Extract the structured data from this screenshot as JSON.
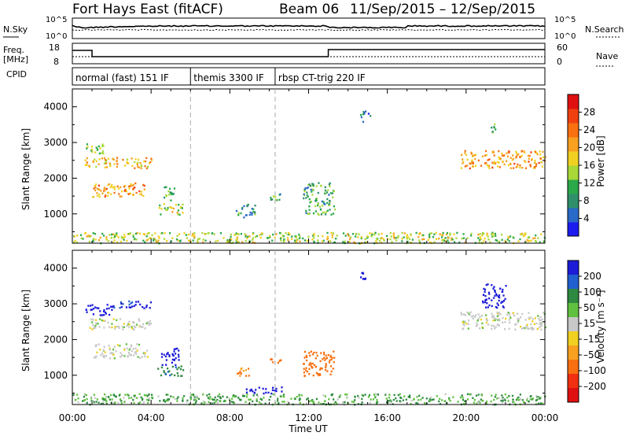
{
  "header": {
    "station": "Fort Hays East (fitACF)",
    "beam": "Beam 06",
    "dates": "11/Sep/2015 – 12/Sep/2015"
  },
  "noise_panel": {
    "left_label": "N.Sky",
    "right_label": "N.Search",
    "ticks_left": [
      "10^5",
      "10^0"
    ],
    "ticks_right": [
      "10^5",
      "10^0"
    ]
  },
  "freq_panel": {
    "left_label_1": "Freq.",
    "left_label_2": "[MHz]",
    "right_label": "Nave",
    "ticks_left": [
      "18",
      "8"
    ],
    "ticks_right": [
      "60",
      "0"
    ]
  },
  "cpid_panel": {
    "label": "CPID",
    "segments": [
      {
        "label": "normal (fast) 151 IF",
        "start_hour": 0.0
      },
      {
        "label": "themis 3300 IF",
        "start_hour": 6.0
      },
      {
        "label": "rbsp CT-trig 220 IF",
        "start_hour": 10.3
      }
    ]
  },
  "x_axis": {
    "label": "Time UT",
    "ticks": [
      "00:00",
      "04:00",
      "08:00",
      "12:00",
      "16:00",
      "20:00",
      "00:00"
    ]
  },
  "power_panel": {
    "ylabel": "Slant Range [km]",
    "yticks": [
      "1000",
      "2000",
      "3000",
      "4000"
    ],
    "colorbar_label": "Power [dB]",
    "colorbar_ticks": [
      "4",
      "8",
      "12",
      "16",
      "20",
      "24",
      "28"
    ]
  },
  "velocity_panel": {
    "ylabel": "Slant Range [km]",
    "yticks": [
      "1000",
      "2000",
      "3000",
      "4000"
    ],
    "colorbar_label": "Velocity [m s⁻¹]",
    "colorbar_ticks": [
      "200",
      "100",
      "50",
      "15",
      "–15",
      "–50",
      "–100",
      "–200"
    ]
  },
  "colors": {
    "power_scale": [
      "#1c1cf0",
      "#2a6ac8",
      "#2f8f6a",
      "#2aa84a",
      "#a8d838",
      "#f0d020",
      "#f8a020",
      "#f87010",
      "#f04010",
      "#e01010"
    ],
    "velocity_scale": [
      "#1c1cd8",
      "#2060d0",
      "#2e8a40",
      "#60c040",
      "#c8c8c8",
      "#f0d020",
      "#f8a020",
      "#f87010",
      "#f03010",
      "#e01010"
    ]
  },
  "chart_data": [
    {
      "type": "heatmap",
      "title": "Power [dB]",
      "xlabel": "Time UT",
      "ylabel": "Slant Range [km]",
      "xlim": [
        0,
        24
      ],
      "ylim": [
        180,
        4500
      ],
      "clim": [
        0,
        30
      ],
      "patches": [
        {
          "t0": 0.6,
          "t1": 4.0,
          "r0": 2300,
          "r1": 2600,
          "value": 18
        },
        {
          "t0": 0.6,
          "t1": 1.6,
          "r0": 2700,
          "r1": 3000,
          "value": 12
        },
        {
          "t0": 1.0,
          "t1": 3.8,
          "r0": 1500,
          "r1": 1900,
          "value": 20
        },
        {
          "t0": 4.3,
          "t1": 5.6,
          "r0": 1000,
          "r1": 1300,
          "value": 14
        },
        {
          "t0": 4.6,
          "t1": 5.2,
          "r0": 1400,
          "r1": 1800,
          "value": 10
        },
        {
          "t0": 8.3,
          "t1": 9.3,
          "r0": 900,
          "r1": 1300,
          "value": 8
        },
        {
          "t0": 10.0,
          "t1": 10.6,
          "r0": 1300,
          "r1": 1600,
          "value": 10
        },
        {
          "t0": 11.7,
          "t1": 13.3,
          "r0": 1000,
          "r1": 1900,
          "value": 10
        },
        {
          "t0": 14.6,
          "t1": 15.1,
          "r0": 3600,
          "r1": 3900,
          "value": 6
        },
        {
          "t0": 19.7,
          "t1": 24.0,
          "r0": 2300,
          "r1": 2800,
          "value": 20
        },
        {
          "t0": 21.1,
          "t1": 21.5,
          "r0": 3300,
          "r1": 3600,
          "value": 10
        },
        {
          "t0": 0.0,
          "t1": 24.0,
          "r0": 200,
          "r1": 500,
          "value": 14
        }
      ]
    },
    {
      "type": "heatmap",
      "title": "Velocity [m s⁻¹]",
      "xlabel": "Time UT",
      "ylabel": "Slant Range [km]",
      "xlim": [
        0,
        24
      ],
      "ylim": [
        180,
        4500
      ],
      "clim": [
        -200,
        200
      ],
      "patches": [
        {
          "t0": 0.6,
          "t1": 4.0,
          "r0": 2300,
          "r1": 2600,
          "value": 0
        },
        {
          "t0": 0.6,
          "t1": 2.0,
          "r0": 2700,
          "r1": 3000,
          "value": 200
        },
        {
          "t0": 2.0,
          "t1": 4.0,
          "r0": 2900,
          "r1": 3100,
          "value": 150
        },
        {
          "t0": 1.0,
          "t1": 3.8,
          "r0": 1500,
          "r1": 1900,
          "value": 0
        },
        {
          "t0": 4.5,
          "t1": 5.4,
          "r0": 1300,
          "r1": 1800,
          "value": 200
        },
        {
          "t0": 4.3,
          "t1": 5.6,
          "r0": 1000,
          "r1": 1300,
          "value": 60
        },
        {
          "t0": 8.3,
          "t1": 9.0,
          "r0": 1000,
          "r1": 1300,
          "value": -80
        },
        {
          "t0": 8.8,
          "t1": 10.6,
          "r0": 500,
          "r1": 700,
          "value": 200
        },
        {
          "t0": 10.0,
          "t1": 10.6,
          "r0": 1300,
          "r1": 1500,
          "value": -120
        },
        {
          "t0": 11.7,
          "t1": 13.3,
          "r0": 1000,
          "r1": 1700,
          "value": -120
        },
        {
          "t0": 14.6,
          "t1": 15.0,
          "r0": 3700,
          "r1": 3900,
          "value": 200
        },
        {
          "t0": 19.7,
          "t1": 24.0,
          "r0": 2300,
          "r1": 2800,
          "value": 0
        },
        {
          "t0": 20.8,
          "t1": 22.0,
          "r0": 2900,
          "r1": 3600,
          "value": 200
        },
        {
          "t0": 0.0,
          "t1": 24.0,
          "r0": 200,
          "r1": 500,
          "value": 30
        }
      ]
    }
  ]
}
